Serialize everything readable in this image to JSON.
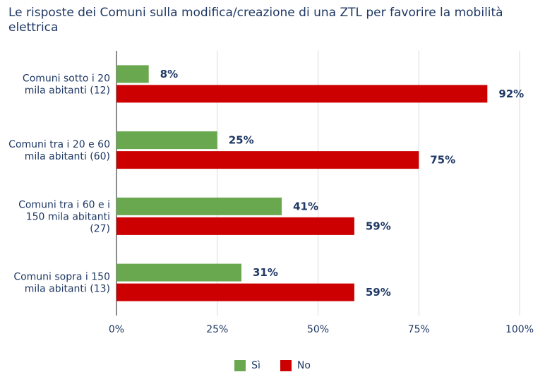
{
  "chart_title": "Le risposte dei Comuni sulla modifica/creazione di una ZTL per favorire la mobilità elettrica",
  "chart_data": {
    "type": "bar",
    "orientation": "horizontal",
    "title": "Le risposte dei Comuni sulla modifica/creazione di una ZTL per favorire la mobilità elettrica",
    "categories": [
      [
        "Comuni sotto i 20",
        "mila abitanti (12)"
      ],
      [
        "Comuni tra i 20 e 60",
        "mila abitanti (60)"
      ],
      [
        "Comuni tra i 60 e i",
        "150 mila abitanti",
        "(27)"
      ],
      [
        "Comuni sopra i 150",
        "mila abitanti (13)"
      ]
    ],
    "series": [
      {
        "name": "Sì",
        "color": "#6aa84f",
        "values": [
          8,
          25,
          41,
          31
        ],
        "labels": [
          "8%",
          "25%",
          "41%",
          "31%"
        ]
      },
      {
        "name": "No",
        "color": "#cc0000",
        "values": [
          92,
          75,
          59,
          59
        ],
        "labels": [
          "92%",
          "75%",
          "59%",
          "59%"
        ]
      }
    ],
    "xlim": [
      0,
      100
    ],
    "x_ticks": [
      0,
      25,
      50,
      75,
      100
    ],
    "x_tick_labels": [
      "0%",
      "25%",
      "50%",
      "75%",
      "100%"
    ],
    "grid": true,
    "legend_position": "bottom"
  }
}
